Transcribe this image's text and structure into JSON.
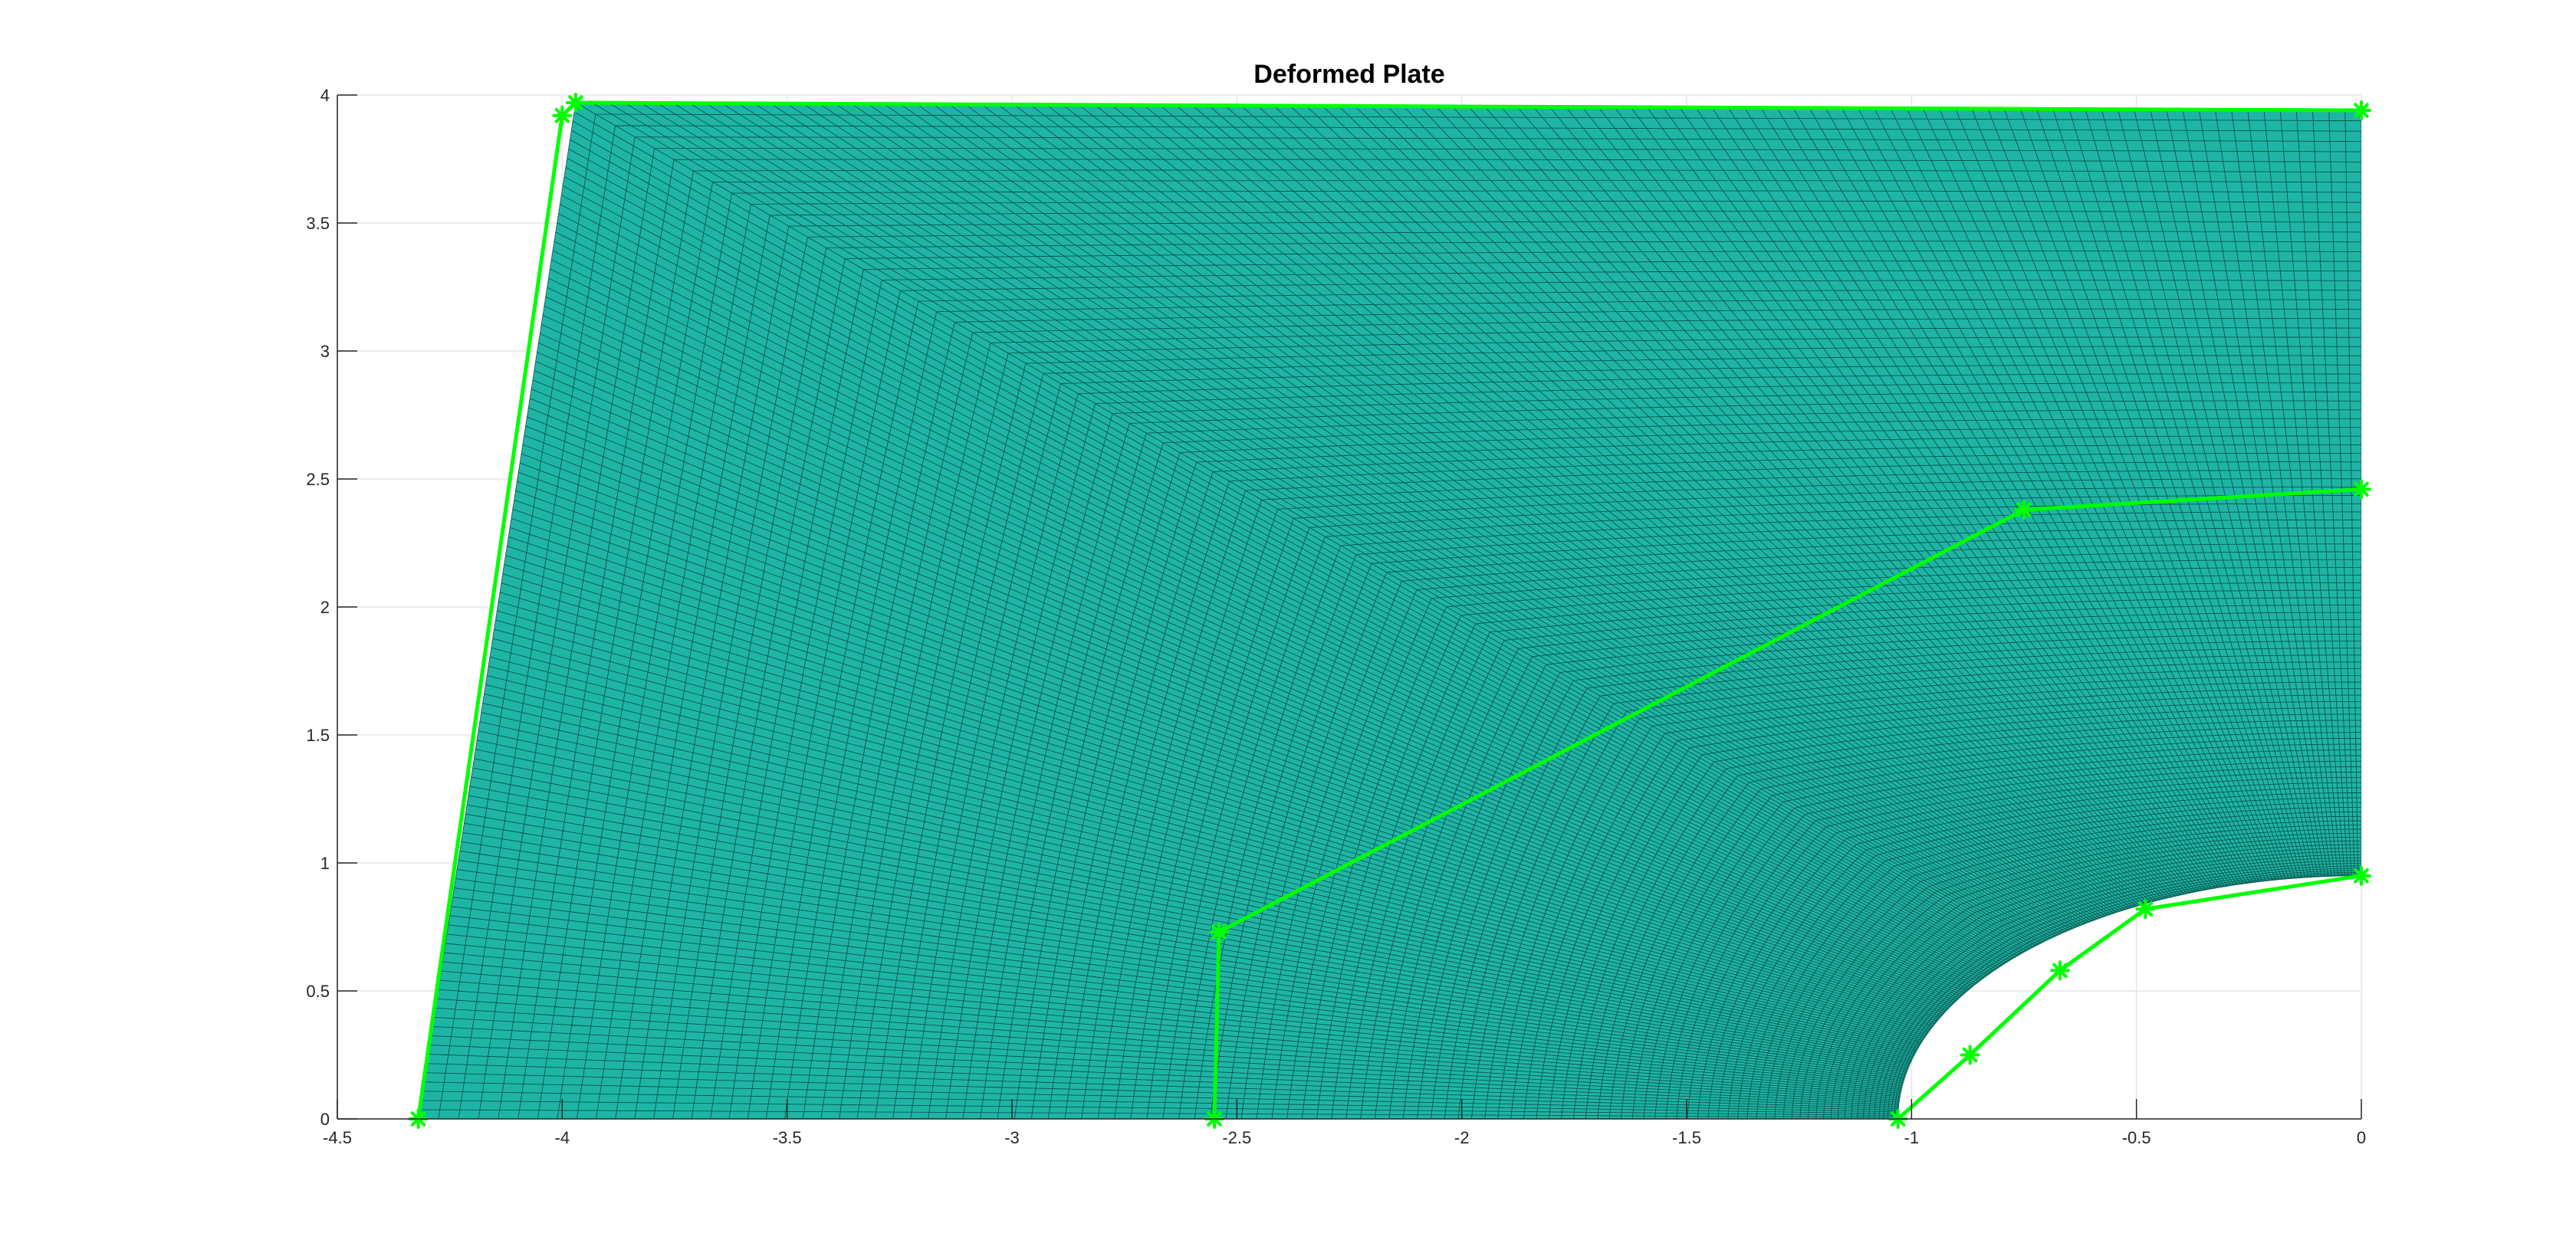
{
  "chart_data": {
    "type": "line",
    "title": "Deformed Plate",
    "xlabel": "",
    "ylabel": "",
    "xlim": [
      -4.5,
      0
    ],
    "ylim": [
      0,
      4
    ],
    "grid": true,
    "legend": "none",
    "x_ticks": [
      -4.5,
      -4,
      -3.5,
      -3,
      -2.5,
      -2,
      -1.5,
      -1,
      -0.5,
      0
    ],
    "x_tick_labels": [
      "-4.5",
      "-4",
      "-3.5",
      "-3",
      "-2.5",
      "-2",
      "-1.5",
      "-1",
      "-0.5",
      "0"
    ],
    "y_ticks": [
      0,
      0.5,
      1,
      1.5,
      2,
      2.5,
      3,
      3.5,
      4
    ],
    "y_tick_labels": [
      "0",
      "0.5",
      "1",
      "1.5",
      "2",
      "2.5",
      "3",
      "3.5",
      "4"
    ],
    "mesh": {
      "fill_color": "#1fb5a6",
      "line_color": "#003a33",
      "outer_corner_bottom_left": [
        -4.32,
        0
      ],
      "outer_corner_top_left": [
        -3.97,
        3.97
      ],
      "outer_corner_top_right": [
        0,
        3.94
      ],
      "hole_radius": 1.0
    },
    "series": [
      {
        "color": "#00ff00",
        "marker": "*",
        "x": [
          -4.32,
          -4.0,
          -3.97,
          0.0
        ],
        "y": [
          0.0,
          3.92,
          3.97,
          3.94
        ]
      },
      {
        "color": "#00ff00",
        "marker": "*",
        "x": [
          -2.55,
          -2.54,
          -0.75,
          0.0
        ],
        "y": [
          0.0,
          0.73,
          2.38,
          2.46
        ]
      },
      {
        "color": "#00ff00",
        "marker": "*",
        "x": [
          -1.03,
          -0.87,
          -0.67,
          -0.48,
          0.0
        ],
        "y": [
          0.0,
          0.25,
          0.58,
          0.82,
          0.95
        ]
      }
    ]
  }
}
